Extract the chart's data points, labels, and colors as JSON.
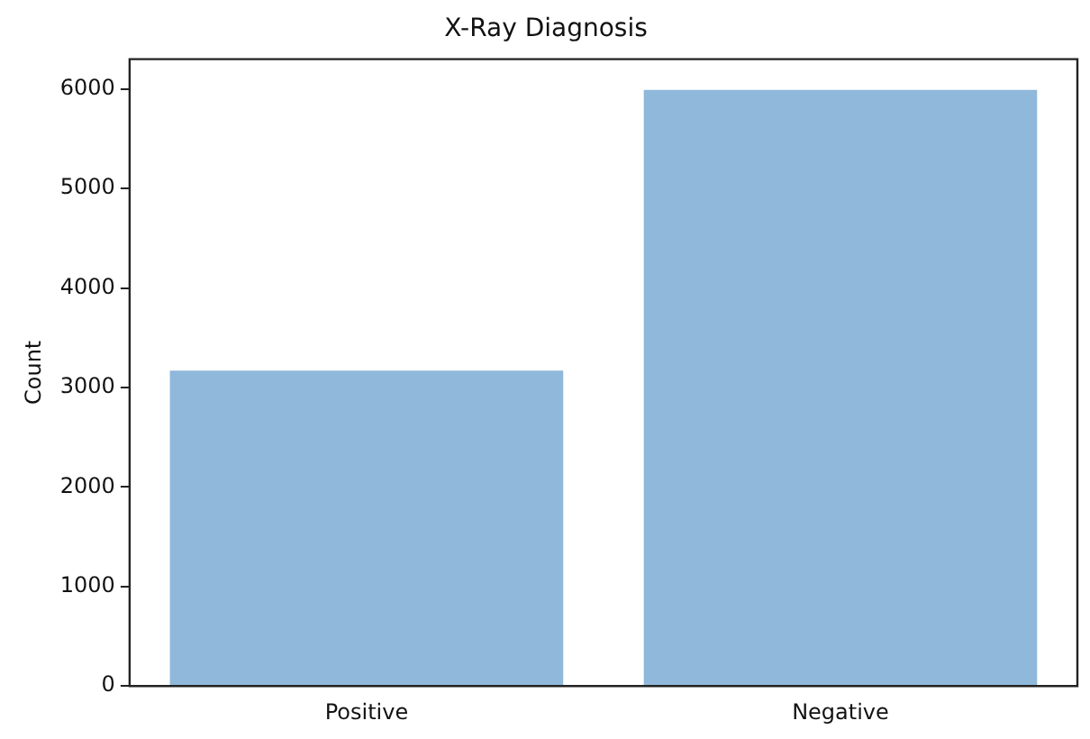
{
  "chart_data": {
    "type": "bar",
    "title": "X-Ray Diagnosis",
    "ylabel": "Count",
    "categories": [
      "Positive",
      "Negative"
    ],
    "values": [
      3170,
      5990
    ],
    "color": "#8fb8db",
    "ylim": [
      0,
      6300
    ],
    "yticks": [
      0,
      1000,
      2000,
      3000,
      4000,
      5000,
      6000
    ],
    "grid": false,
    "legend": false
  }
}
